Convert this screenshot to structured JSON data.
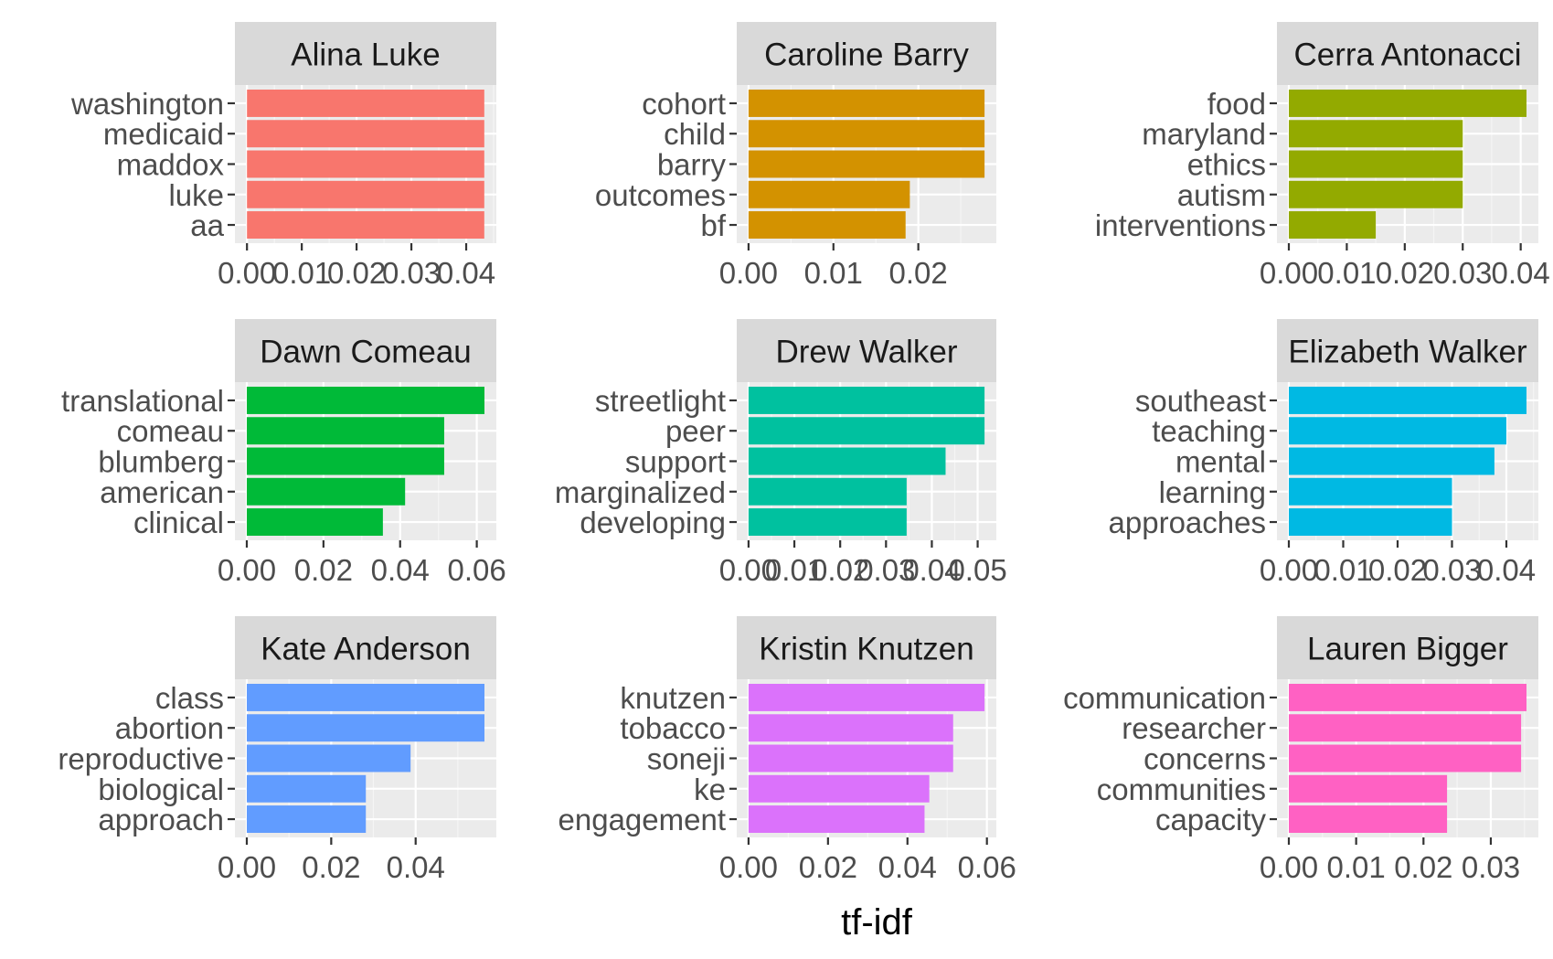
{
  "chart_data": {
    "type": "bar",
    "orientation": "horizontal",
    "xlabel": "tf-idf",
    "ylabel": "",
    "grid": true,
    "facets": [
      {
        "title": "Alina Luke",
        "color": "#F8766D",
        "categories": [
          "washington",
          "medicaid",
          "maddox",
          "luke",
          "aa"
        ],
        "values": [
          0.0433,
          0.0433,
          0.0433,
          0.0433,
          0.0433
        ],
        "xlim": [
          -0.0022,
          0.0455
        ],
        "ticks": [
          0,
          0.01,
          0.02,
          0.03,
          0.04
        ],
        "tick_labels": [
          "0.00",
          "0.01",
          "0.02",
          "0.03",
          "0.04"
        ]
      },
      {
        "title": "Caroline Barry",
        "color": "#D39200",
        "categories": [
          "cohort",
          "child",
          "barry",
          "outcomes",
          "bf"
        ],
        "values": [
          0.0278,
          0.0278,
          0.0278,
          0.019,
          0.0185
        ],
        "xlim": [
          -0.00139,
          0.02919
        ],
        "ticks": [
          0,
          0.01,
          0.02
        ],
        "tick_labels": [
          "0.00",
          "0.01",
          "0.02"
        ]
      },
      {
        "title": "Cerra Antonacci",
        "color": "#93AA00",
        "categories": [
          "food",
          "maryland",
          "ethics",
          "autism",
          "interventions"
        ],
        "values": [
          0.041,
          0.03,
          0.03,
          0.03,
          0.015
        ],
        "xlim": [
          -0.00205,
          0.04305
        ],
        "ticks": [
          0,
          0.01,
          0.02,
          0.03,
          0.04
        ],
        "tick_labels": [
          "0.00",
          "0.01",
          "0.02",
          "0.03",
          "0.04"
        ]
      },
      {
        "title": "Dawn Comeau",
        "color": "#00BA38",
        "categories": [
          "translational",
          "comeau",
          "blumberg",
          "american",
          "clinical"
        ],
        "values": [
          0.062,
          0.0515,
          0.0515,
          0.0413,
          0.0355
        ],
        "xlim": [
          -0.0031,
          0.0651
        ],
        "ticks": [
          0,
          0.02,
          0.04,
          0.06
        ],
        "tick_labels": [
          "0.00",
          "0.02",
          "0.04",
          "0.06"
        ]
      },
      {
        "title": "Drew Walker",
        "color": "#00C19F",
        "categories": [
          "streetlight",
          "peer",
          "support",
          "marginalized",
          "developing"
        ],
        "values": [
          0.0515,
          0.0515,
          0.043,
          0.0345,
          0.0345
        ],
        "xlim": [
          -0.002575,
          0.054075
        ],
        "ticks": [
          0,
          0.01,
          0.02,
          0.03,
          0.04,
          0.05
        ],
        "tick_labels": [
          "0.00",
          "0.01",
          "0.02",
          "0.03",
          "0.04",
          "0.05"
        ]
      },
      {
        "title": "Elizabeth Walker",
        "color": "#00B9E3",
        "categories": [
          "southeast",
          "teaching",
          "mental",
          "learning",
          "approaches"
        ],
        "values": [
          0.0437,
          0.04,
          0.0378,
          0.03,
          0.03
        ],
        "xlim": [
          -0.002185,
          0.045885
        ],
        "ticks": [
          0,
          0.01,
          0.02,
          0.03,
          0.04
        ],
        "tick_labels": [
          "0.00",
          "0.01",
          "0.02",
          "0.03",
          "0.04"
        ]
      },
      {
        "title": "Kate Anderson",
        "color": "#619CFF",
        "categories": [
          "class",
          "abortion",
          "reproductive",
          "biological",
          "approach"
        ],
        "values": [
          0.0563,
          0.0563,
          0.0388,
          0.0282,
          0.0282
        ],
        "xlim": [
          -0.002815,
          0.059115
        ],
        "ticks": [
          0,
          0.02,
          0.04
        ],
        "tick_labels": [
          "0.00",
          "0.02",
          "0.04"
        ]
      },
      {
        "title": "Kristin Knutzen",
        "color": "#DB72FB",
        "categories": [
          "knutzen",
          "tobacco",
          "soneji",
          "ke",
          "engagement"
        ],
        "values": [
          0.0594,
          0.0515,
          0.0515,
          0.0455,
          0.0443
        ],
        "xlim": [
          -0.00297,
          0.06237
        ],
        "ticks": [
          0,
          0.02,
          0.04,
          0.06
        ],
        "tick_labels": [
          "0.00",
          "0.02",
          "0.04",
          "0.06"
        ]
      },
      {
        "title": "Lauren Bigger",
        "color": "#FF61C3",
        "categories": [
          "communication",
          "researcher",
          "concerns",
          "communities",
          "capacity"
        ],
        "values": [
          0.0353,
          0.0345,
          0.0345,
          0.0235,
          0.0235
        ],
        "xlim": [
          -0.001765,
          0.037065
        ],
        "ticks": [
          0,
          0.01,
          0.02,
          0.03
        ],
        "tick_labels": [
          "0.00",
          "0.01",
          "0.02",
          "0.03"
        ]
      }
    ]
  }
}
